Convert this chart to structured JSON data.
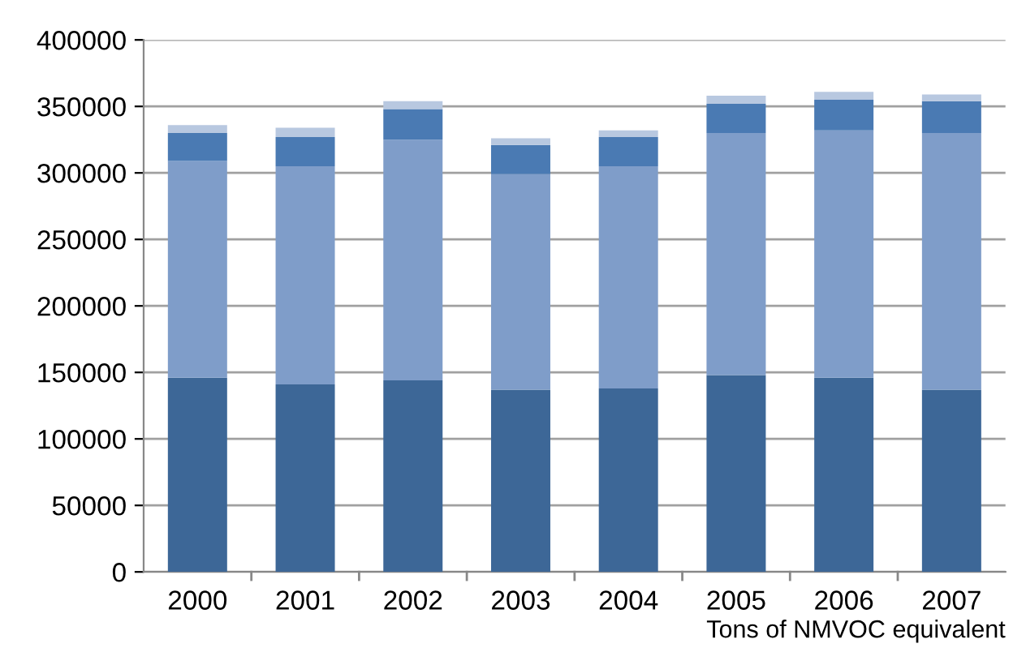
{
  "chart_data": {
    "type": "bar",
    "stacked": true,
    "xlabel": "Tons of NMVOC equivalent",
    "categories": [
      "2000",
      "2001",
      "2002",
      "2003",
      "2004",
      "2005",
      "2006",
      "2007"
    ],
    "series": [
      {
        "color": "#3d6797",
        "values": [
          146000,
          141000,
          144000,
          137000,
          138000,
          148000,
          146000,
          137000
        ]
      },
      {
        "color": "#7f9dc9",
        "values": [
          163000,
          164000,
          181000,
          162000,
          167000,
          182000,
          186000,
          193000
        ]
      },
      {
        "color": "#4a7ab3",
        "values": [
          21000,
          22000,
          23000,
          22000,
          22000,
          22000,
          23000,
          24000
        ]
      },
      {
        "color": "#b8c8e0",
        "values": [
          6000,
          7000,
          6000,
          5000,
          5000,
          6000,
          6000,
          5000
        ]
      }
    ],
    "ylim": [
      0,
      400000
    ],
    "yticks": [
      0,
      50000,
      100000,
      150000,
      200000,
      250000,
      300000,
      350000,
      400000
    ],
    "grid": "y",
    "legend": false
  }
}
